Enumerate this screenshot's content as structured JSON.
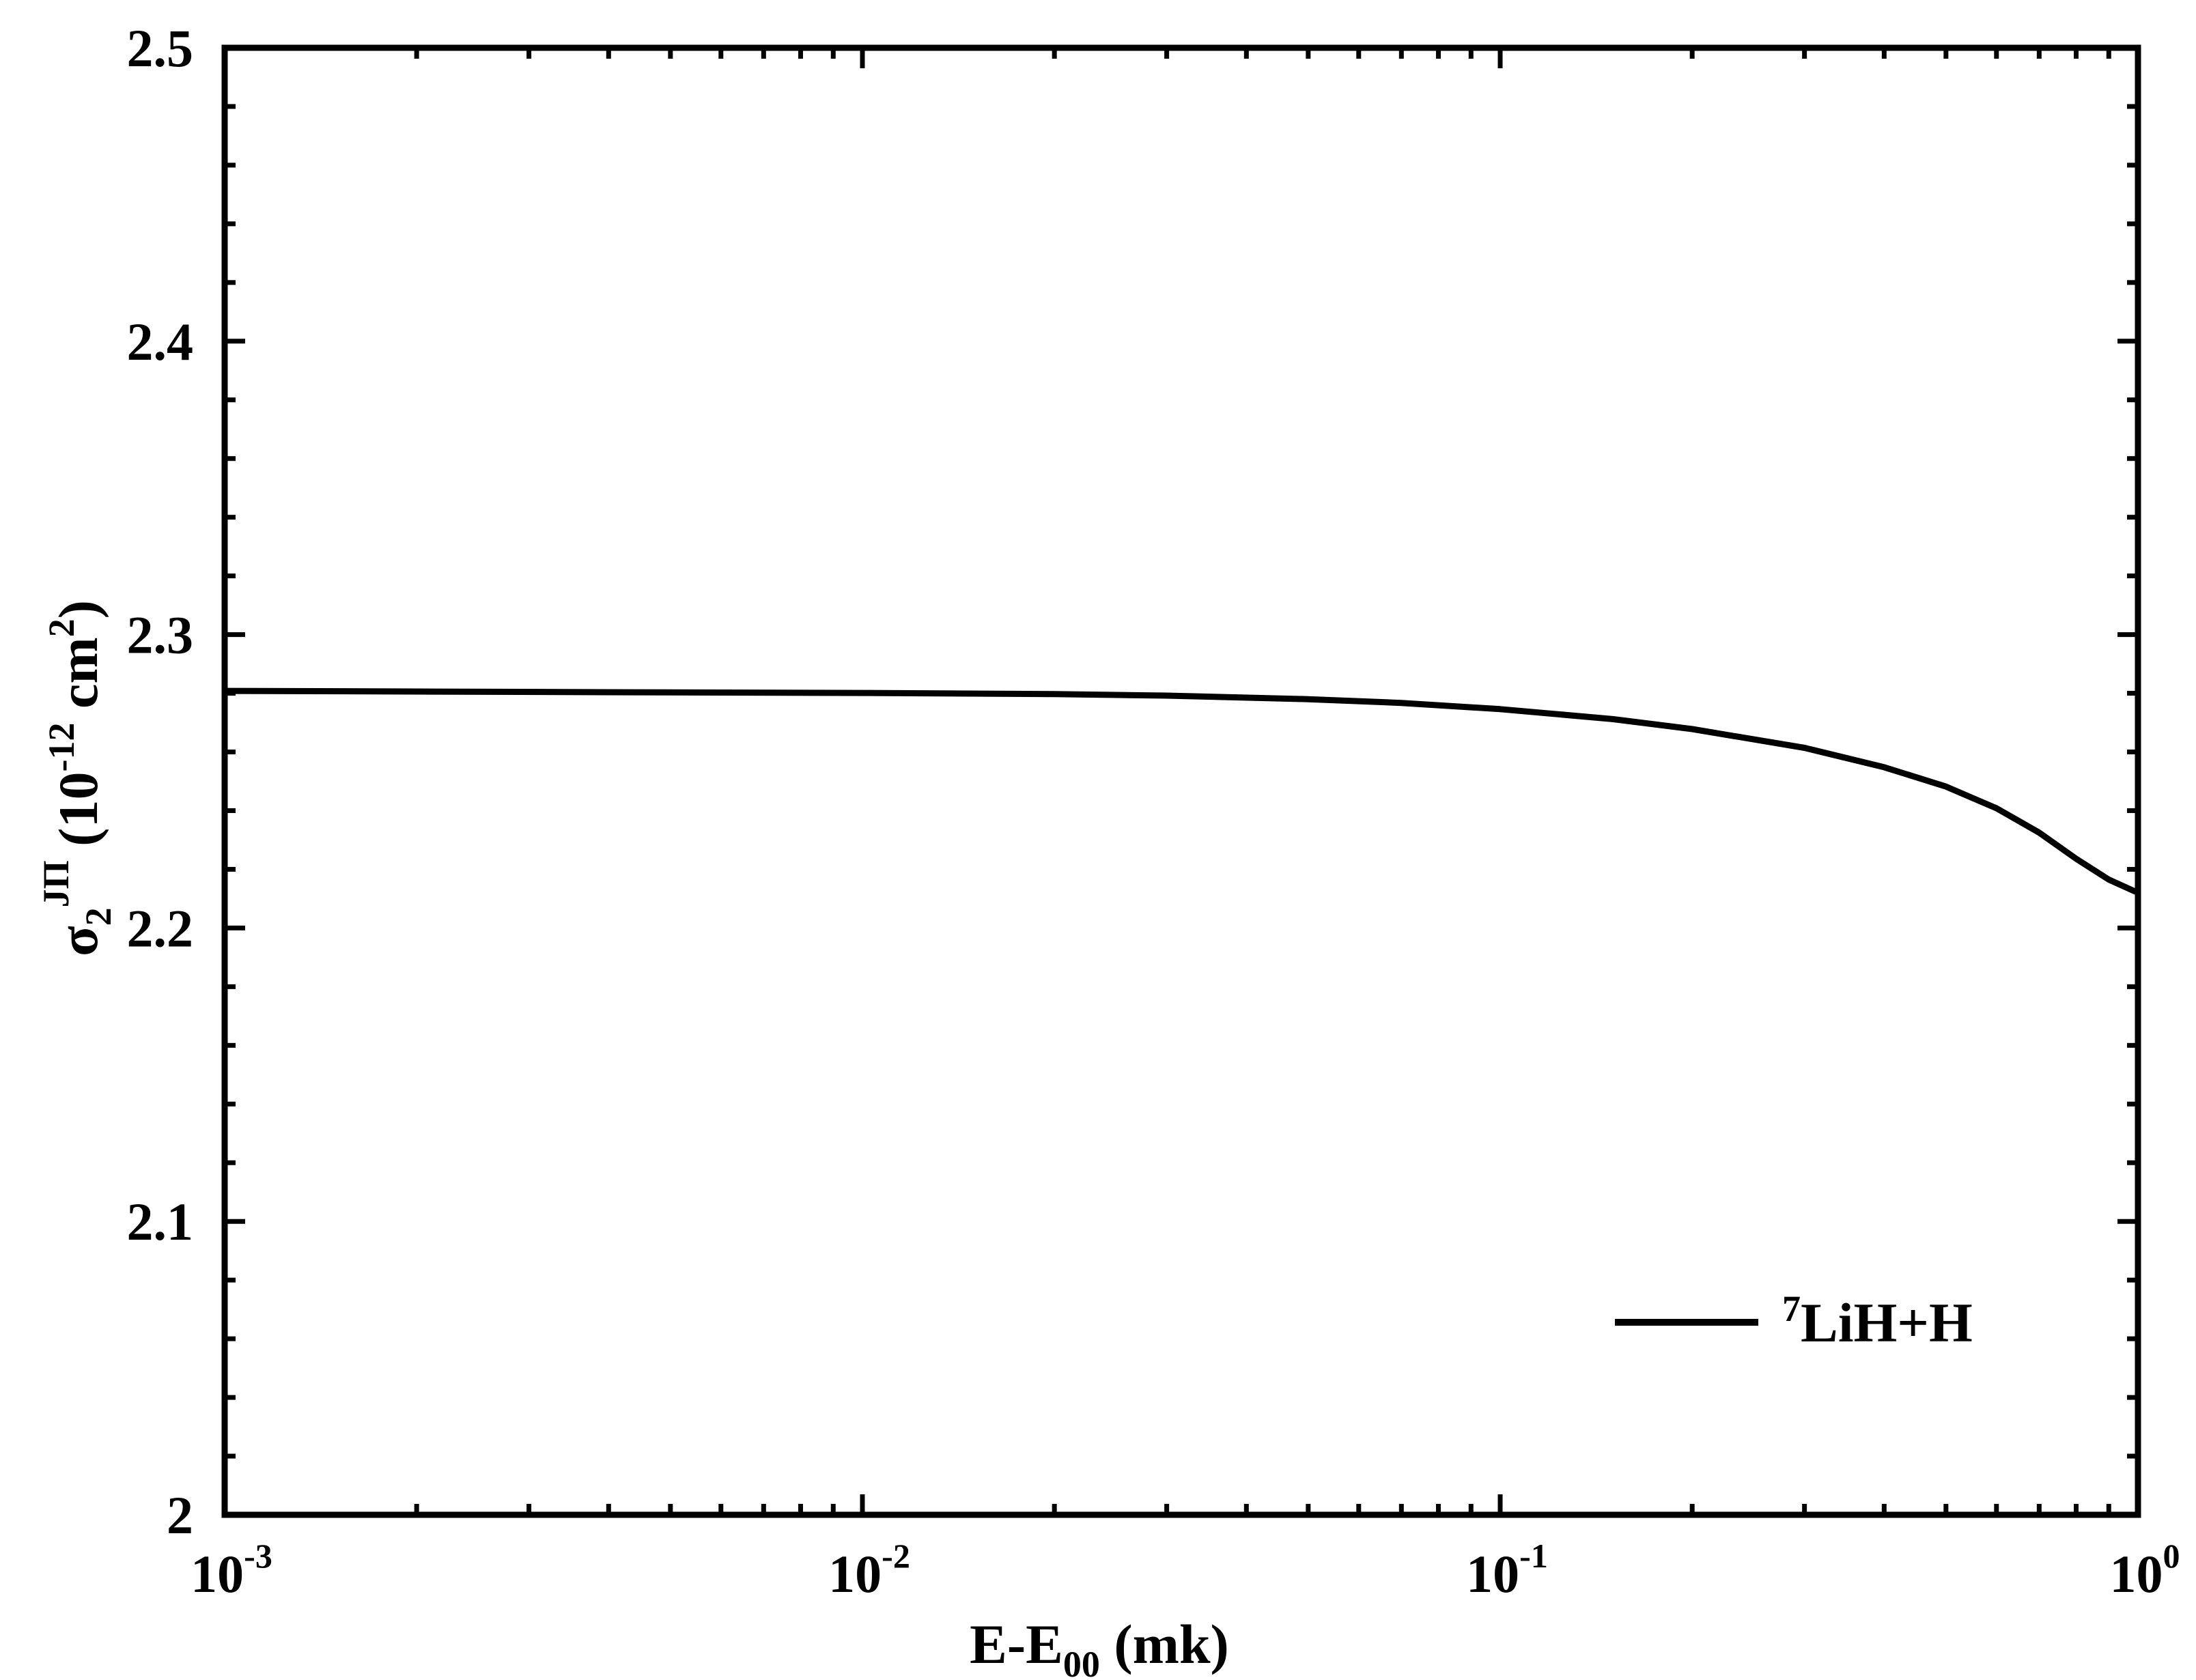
{
  "chart_data": {
    "type": "line",
    "xscale": "log",
    "xlim": [
      0.001,
      1
    ],
    "ylim": [
      2.0,
      2.5
    ],
    "x_ticks": [
      {
        "value": 0.001,
        "base": "10",
        "exp": "-3"
      },
      {
        "value": 0.01,
        "base": "10",
        "exp": "-2"
      },
      {
        "value": 0.1,
        "base": "10",
        "exp": "-1"
      },
      {
        "value": 1,
        "base": "10",
        "exp": "0"
      }
    ],
    "y_ticks": [
      {
        "value": 2.0,
        "label": "2"
      },
      {
        "value": 2.1,
        "label": "2.1"
      },
      {
        "value": 2.2,
        "label": "2.2"
      },
      {
        "value": 2.3,
        "label": "2.3"
      },
      {
        "value": 2.4,
        "label": "2.4"
      },
      {
        "value": 2.5,
        "label": "2.5"
      }
    ],
    "xlabel": {
      "main": "E-E",
      "sub": "00",
      "rest": " (mk)"
    },
    "ylabel": {
      "sym": "σ",
      "sub": "2",
      "sup": "JΠ",
      "rest_a": " (10",
      "rest_sup1": "-12",
      "rest_b": " cm",
      "rest_sup2": "2",
      "rest_c": ")"
    },
    "grid": false,
    "legend": {
      "position": "bottom-right",
      "sup": "7",
      "text": "LiH+H"
    },
    "series": [
      {
        "name": "7LiH+H",
        "color": "#000000",
        "x": [
          0.001,
          0.002,
          0.005,
          0.01,
          0.02,
          0.03,
          0.05,
          0.07,
          0.1,
          0.15,
          0.2,
          0.3,
          0.4,
          0.5,
          0.6,
          0.7,
          0.8,
          0.9,
          1.0
        ],
        "y": [
          2.2808,
          2.2806,
          2.2803,
          2.2801,
          2.2797,
          2.2792,
          2.278,
          2.2767,
          2.2746,
          2.2712,
          2.2678,
          2.2614,
          2.2548,
          2.2482,
          2.2408,
          2.2325,
          2.2236,
          2.2165,
          2.212
        ]
      }
    ]
  }
}
